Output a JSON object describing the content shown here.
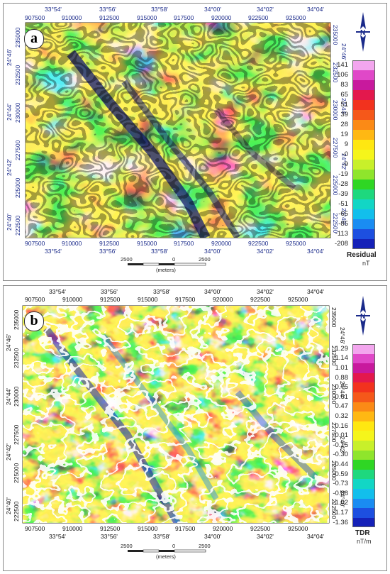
{
  "panels": [
    {
      "id": "a",
      "label": "a",
      "lon_labels": [
        "33°54'",
        "33°56'",
        "33°58'",
        "34°00'",
        "34°02'",
        "34°04'"
      ],
      "easting_labels": [
        "907500",
        "910000",
        "912500",
        "915000",
        "917500",
        "920000",
        "922500",
        "925000"
      ],
      "lat_labels": [
        "24°46'",
        "24°44'",
        "24°42'",
        "24°40'"
      ],
      "northing_labels": [
        "235000",
        "232500",
        "230000",
        "227500",
        "225000",
        "222500"
      ],
      "legend": {
        "title": "Residual",
        "unit": "nT",
        "values": [
          "141",
          "106",
          "83",
          "65",
          "51",
          "39",
          "28",
          "19",
          "9",
          "-0",
          "-9",
          "-19",
          "-28",
          "-39",
          "-51",
          "-65",
          "-85",
          "-113",
          "-208"
        ],
        "colors": [
          "#f3a6ee",
          "#e048c8",
          "#c8199d",
          "#e3184d",
          "#f2321e",
          "#f5581a",
          "#fb8a16",
          "#ffb813",
          "#ffe711",
          "#f5f51b",
          "#c8f02a",
          "#8fe52c",
          "#2fd624",
          "#1ed87e",
          "#12d6c5",
          "#12bfec",
          "#1a8cf2",
          "#1d4fe0",
          "#1521b8"
        ]
      },
      "scalebar": {
        "left": "2500",
        "center": "0",
        "right": "2500",
        "unit": "(meters)"
      }
    },
    {
      "id": "b",
      "label": "b",
      "lon_labels": [
        "33°54'",
        "33°56'",
        "33°58'",
        "34°00'",
        "34°02'",
        "34°04'"
      ],
      "easting_labels": [
        "907500",
        "910000",
        "912500",
        "915000",
        "917500",
        "920000",
        "922500",
        "925000"
      ],
      "lat_labels": [
        "24°46'",
        "24°44'",
        "24°42'",
        "24°40'"
      ],
      "northing_labels": [
        "235000",
        "232500",
        "230000",
        "227500",
        "225000",
        "222500"
      ],
      "legend": {
        "title": "TDR",
        "unit": "nT/m",
        "values": [
          "1.29",
          "1.14",
          "1.01",
          "0.88",
          "0.75",
          "0.61",
          "0.47",
          "0.32",
          "0.16",
          "0.01",
          "-0.15",
          "-0.30",
          "-0.44",
          "-0.59",
          "-0.73",
          "-0.88",
          "-1.02",
          "-1.17",
          "-1.36"
        ],
        "colors": [
          "#f3a6ee",
          "#e048c8",
          "#c8199d",
          "#e3184d",
          "#f2321e",
          "#f5581a",
          "#fb8a16",
          "#ffb813",
          "#ffe711",
          "#f5f51b",
          "#c8f02a",
          "#8fe52c",
          "#2fd624",
          "#1ed87e",
          "#12d6c5",
          "#12bfec",
          "#1a8cf2",
          "#1d4fe0",
          "#1521b8"
        ]
      },
      "scalebar": {
        "left": "2500",
        "center": "0",
        "right": "2500",
        "unit": "(meters)"
      }
    }
  ]
}
